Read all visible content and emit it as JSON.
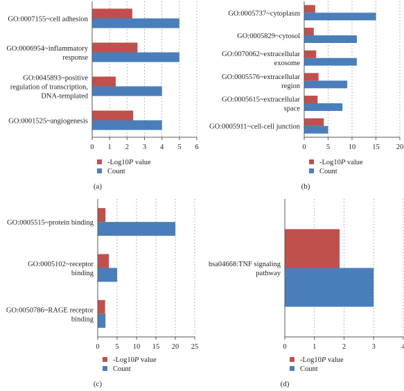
{
  "colors": {
    "pvalue": "#c0504d",
    "count": "#4a7ebb",
    "axis": "#555555",
    "grid": "#888888"
  },
  "legend_items": [
    {
      "prefix": "-Log10",
      "italic": "P",
      "suffix": " value"
    },
    {
      "prefix": "Count",
      "italic": "",
      "suffix": ""
    }
  ],
  "chart_data": [
    {
      "type": "bar",
      "orientation": "horizontal",
      "panel_label": "(a)",
      "categories": [
        [
          "GO:0007155~cell adhesion"
        ],
        [
          "GO:0006954~inflammatory",
          "response"
        ],
        [
          "GO:0045893~positive",
          "regulation of transcription,",
          "DNA-templated"
        ],
        [
          "GO:0001525~angiogenesis"
        ]
      ],
      "series": [
        {
          "name": "-Log10P value",
          "values": [
            2.3,
            2.6,
            1.35,
            2.35
          ]
        },
        {
          "name": "Count",
          "values": [
            5,
            5,
            4,
            4
          ]
        }
      ],
      "xlim": [
        0,
        6
      ],
      "xticks": [
        "0",
        "1",
        "2",
        "3",
        "4",
        "5",
        "6"
      ],
      "grid": "vertical-dotted",
      "legend": "bottom-left"
    },
    {
      "type": "bar",
      "orientation": "horizontal",
      "panel_label": "(b)",
      "categories": [
        [
          "GO:0005737~cytoplasm"
        ],
        [
          "GO:0005829~cytosol"
        ],
        [
          "GO:0070062~extracellular",
          "exosome"
        ],
        [
          "GO:0005576~extracellular",
          "region"
        ],
        [
          "GO:0005615~extracellular",
          "space"
        ],
        [
          "GO:0005911~cell-cell junction"
        ]
      ],
      "series": [
        {
          "name": "-Log10P value",
          "values": [
            2.3,
            2.0,
            2.5,
            3.0,
            2.8,
            4.1
          ]
        },
        {
          "name": "Count",
          "values": [
            15,
            11,
            11,
            9,
            8,
            5
          ]
        }
      ],
      "xlim": [
        0,
        20
      ],
      "xticks": [
        "0",
        "5",
        "10",
        "15",
        "20"
      ],
      "grid": "vertical-dotted",
      "legend": "bottom-left"
    },
    {
      "type": "bar",
      "orientation": "horizontal",
      "panel_label": "(c)",
      "categories": [
        [
          "GO:0005515~protein binding"
        ],
        [
          "GO:0005102~receptor",
          "binding"
        ],
        [
          "GO:0050786~RAGE receptor",
          "binding"
        ]
      ],
      "series": [
        {
          "name": "-Log10P value",
          "values": [
            2.0,
            2.9,
            1.9
          ]
        },
        {
          "name": "Count",
          "values": [
            20,
            5,
            2
          ]
        }
      ],
      "xlim": [
        0,
        25
      ],
      "xticks": [
        "0",
        "5",
        "10",
        "15",
        "20",
        "25"
      ],
      "grid": "vertical-dotted",
      "legend": "bottom-left"
    },
    {
      "type": "bar",
      "orientation": "horizontal",
      "panel_label": "(d)",
      "categories": [
        [
          "hsa04668:TNF signaling",
          "pathway"
        ]
      ],
      "series": [
        {
          "name": "-Log10P value",
          "values": [
            1.85
          ]
        },
        {
          "name": "Count",
          "values": [
            3
          ]
        }
      ],
      "xlim": [
        0,
        4
      ],
      "xticks": [
        "0",
        "1",
        "2",
        "3",
        "4"
      ],
      "grid": "vertical-dotted",
      "legend": "bottom-left"
    }
  ]
}
